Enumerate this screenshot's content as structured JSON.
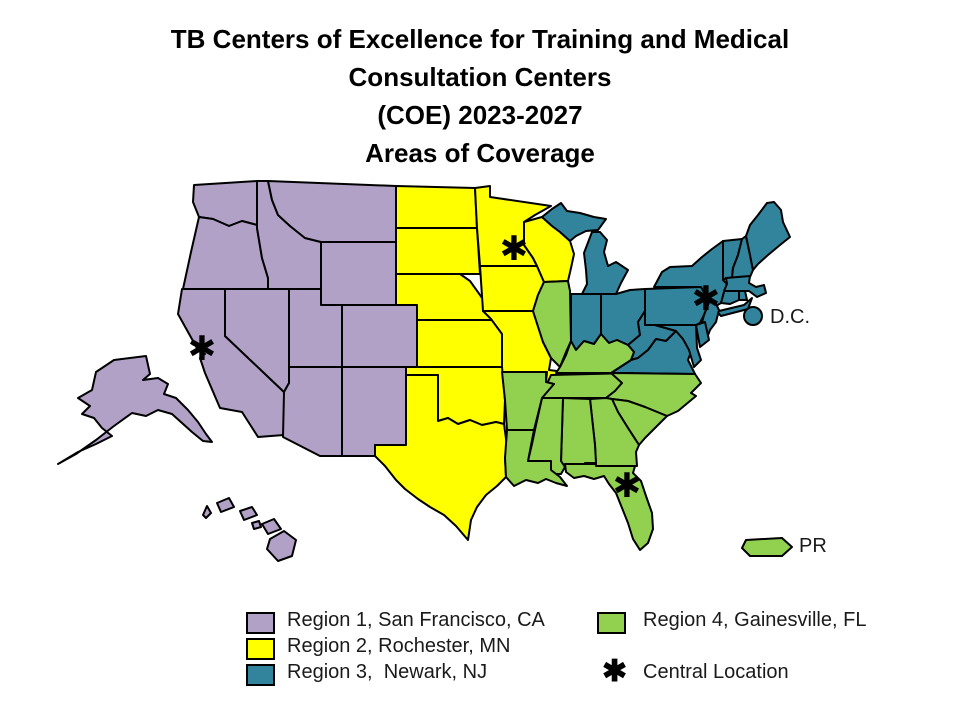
{
  "title": {
    "lines": [
      "TB Centers of Excellence for Training and Medical",
      "Consultation Centers",
      "(COE) 2023-2027",
      "Areas of Coverage"
    ]
  },
  "colors": {
    "background": "#FFFFFF",
    "border": "#000000",
    "text": "#1A1A1A",
    "region1": "#B2A1C7",
    "region2": "#FFFF00",
    "region3": "#31849B",
    "region4": "#92D050"
  },
  "legend": {
    "items": [
      {
        "region": "region1",
        "label": "Region 1, San Francisco, CA"
      },
      {
        "region": "region2",
        "label": "Region 2, Rochester, MN"
      },
      {
        "region": "region3",
        "label": "Region 3,  Newark, NJ"
      },
      {
        "region": "region4",
        "label": "Region 4, Gainesville, FL"
      }
    ],
    "central_location": {
      "symbol": "✱",
      "label": "Central Location"
    }
  },
  "map": {
    "regions": {
      "region1": {
        "name": "Region 1",
        "center": "San Francisco, CA",
        "states": [
          "WA",
          "OR",
          "CA",
          "NV",
          "ID",
          "MT",
          "WY",
          "UT",
          "CO",
          "AZ",
          "NM",
          "AK",
          "HI"
        ]
      },
      "region2": {
        "name": "Region 2",
        "center": "Rochester, MN",
        "states": [
          "ND",
          "SD",
          "NE",
          "KS",
          "MN",
          "IA",
          "MO",
          "WI",
          "OK",
          "TX"
        ]
      },
      "region3": {
        "name": "Region 3",
        "center": "Newark, NJ",
        "states": [
          "MI",
          "IN",
          "OH",
          "PA",
          "NY",
          "NJ",
          "VT",
          "NH",
          "ME",
          "MA",
          "CT",
          "RI",
          "WV",
          "VA",
          "MD",
          "DE"
        ]
      },
      "region4": {
        "name": "Region 4",
        "center": "Gainesville, FL",
        "states": [
          "IL",
          "KY",
          "TN",
          "NC",
          "SC",
          "GA",
          "AL",
          "MS",
          "AR",
          "LA",
          "FL",
          "PR"
        ]
      }
    },
    "central_location_states": [
      "CA",
      "MN",
      "NJ",
      "FL"
    ],
    "marker_symbol": "✱",
    "labels": {
      "dc": "D.C.",
      "pr": "PR"
    }
  }
}
